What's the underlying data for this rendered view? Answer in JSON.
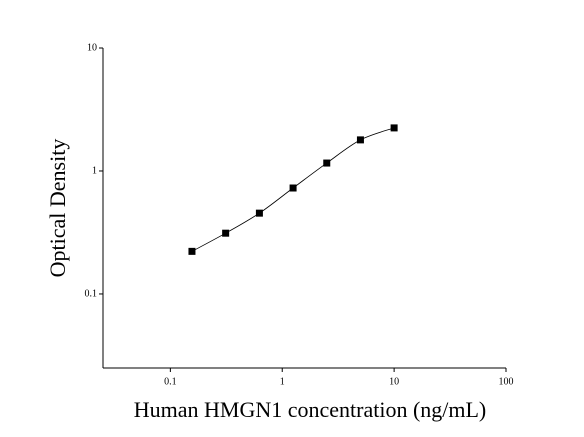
{
  "chart_data": {
    "type": "scatter",
    "x_label": "Human HMGN1 concentration (ng/mL)",
    "y_label": "Optical Density",
    "x": [
      0.156,
      0.312,
      0.625,
      1.25,
      2.5,
      5,
      10
    ],
    "series": [
      {
        "color": "#000000",
        "values": [
          0.222,
          0.312,
          0.454,
          0.727,
          1.16,
          1.79,
          2.24
        ]
      }
    ],
    "curve": "smooth",
    "x_log": true,
    "y_log": true,
    "xlim": [
      0.025,
      100
    ],
    "ylim": [
      0.025,
      10
    ],
    "xticks": [
      0.1,
      1,
      10,
      100
    ],
    "yticks": [
      0.1,
      1,
      10
    ]
  }
}
